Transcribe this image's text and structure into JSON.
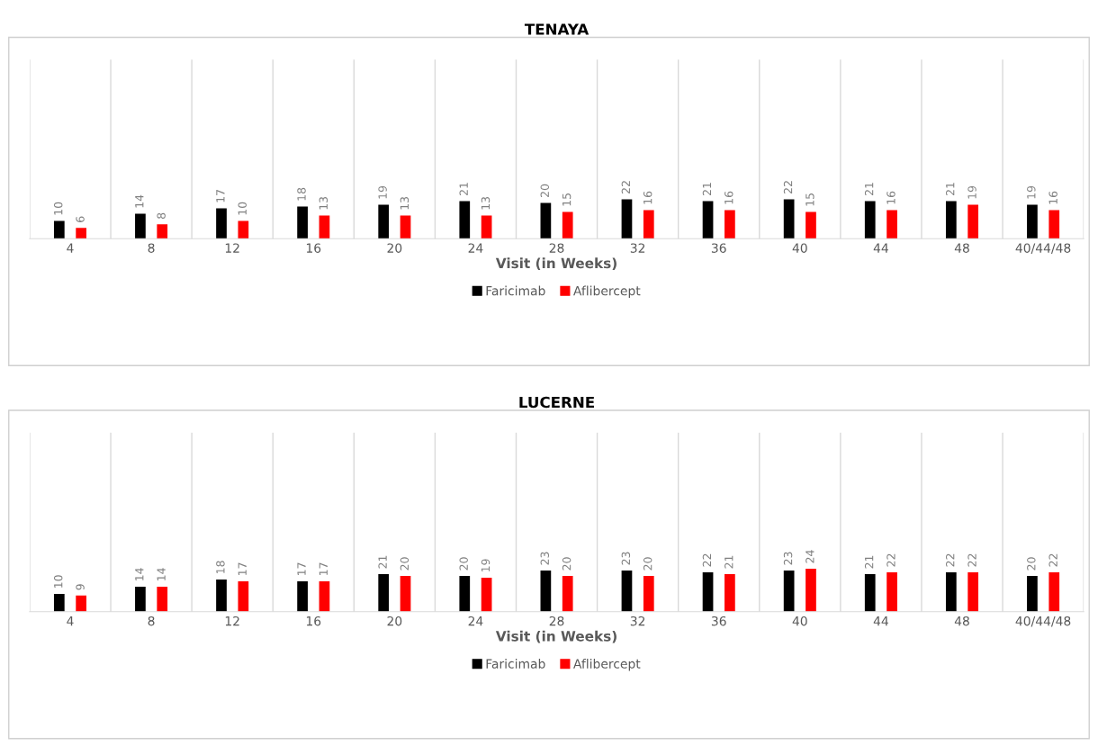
{
  "chart_data": [
    {
      "type": "bar",
      "title": "TENAYA",
      "xlabel": "Visit (in Weeks)",
      "categories": [
        "4",
        "8",
        "12",
        "16",
        "20",
        "24",
        "28",
        "32",
        "36",
        "40",
        "44",
        "48",
        "40/44/48"
      ],
      "series": [
        {
          "name": "Faricimab",
          "color": "#000000",
          "values": [
            10,
            14,
            17,
            18,
            19,
            21,
            20,
            22,
            21,
            22,
            21,
            21,
            19
          ]
        },
        {
          "name": "Aflibercept",
          "color": "#ff0000",
          "values": [
            6,
            8,
            10,
            13,
            13,
            13,
            15,
            16,
            16,
            15,
            16,
            19,
            16
          ]
        }
      ],
      "ylim": [
        0,
        100
      ],
      "tick_labels": "x",
      "data_labels": true,
      "grid": "x",
      "legend": "bottom"
    },
    {
      "type": "bar",
      "title": "LUCERNE",
      "xlabel": "Visit (in Weeks)",
      "categories": [
        "4",
        "8",
        "12",
        "16",
        "20",
        "24",
        "28",
        "32",
        "36",
        "40",
        "44",
        "48",
        "40/44/48"
      ],
      "series": [
        {
          "name": "Faricimab",
          "color": "#000000",
          "values": [
            10,
            14,
            18,
            17,
            21,
            20,
            23,
            23,
            22,
            23,
            21,
            22,
            20
          ]
        },
        {
          "name": "Aflibercept",
          "color": "#ff0000",
          "values": [
            9,
            14,
            17,
            17,
            20,
            19,
            20,
            20,
            21,
            24,
            22,
            22,
            22
          ]
        }
      ],
      "ylim": [
        0,
        100
      ],
      "tick_labels": "x",
      "data_labels": true,
      "grid": "x",
      "legend": "bottom"
    }
  ]
}
